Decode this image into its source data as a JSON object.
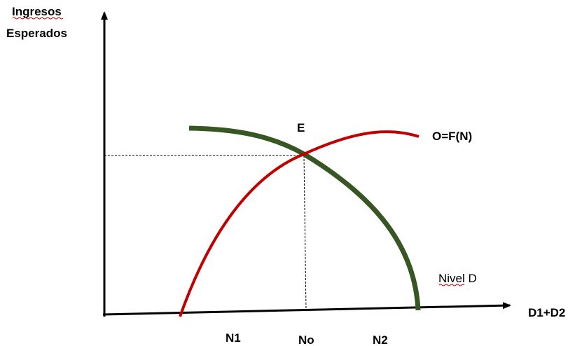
{
  "diagram": {
    "y_axis_label_line1": "Ingresos",
    "y_axis_label_line2": "Esperados",
    "x_axis_label": "D1+D2",
    "point_label": "E",
    "supply_curve_label": "O=F(N)",
    "demand_curve_label": "Nivel D",
    "tick_labels": [
      "N1",
      "No",
      "N2"
    ],
    "colors": {
      "axes": "#000000",
      "supply_curve": "#c00000",
      "demand_curve": "#375623",
      "guides": "#000000"
    }
  }
}
